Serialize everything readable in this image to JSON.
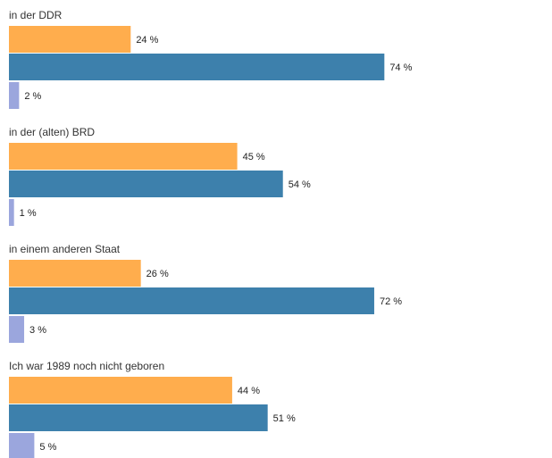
{
  "chart_data": {
    "type": "bar",
    "orientation": "horizontal",
    "categories": [
      "in der DDR",
      "in der (alten) BRD",
      "in einem anderen Staat",
      "Ich war 1989 noch nicht geboren"
    ],
    "series": [
      {
        "color": "#ffad4d",
        "values": [
          24,
          45,
          26,
          44
        ]
      },
      {
        "color": "#3d80ac",
        "values": [
          74,
          54,
          72,
          51
        ]
      },
      {
        "color": "#9ba6dd",
        "values": [
          2,
          1,
          3,
          5
        ]
      }
    ],
    "value_suffix": " %",
    "xlim": [
      0,
      100
    ],
    "grid": false,
    "legend": "none"
  }
}
